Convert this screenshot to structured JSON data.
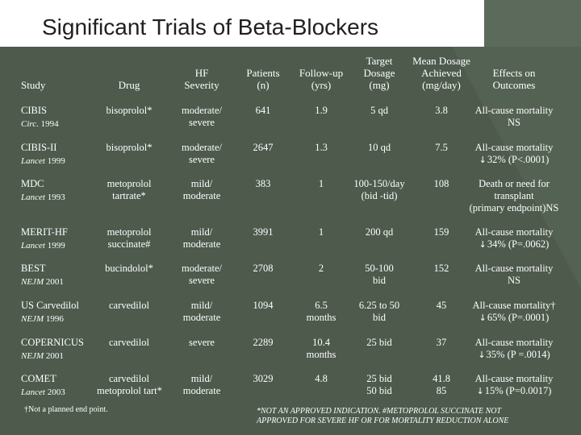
{
  "title": "Significant Trials of Beta-Blockers",
  "headers": {
    "study": "Study",
    "drug": "Drug",
    "hf": [
      "HF",
      "Severity"
    ],
    "patients": [
      "Patients",
      "(n)"
    ],
    "followup": [
      "Follow-up",
      "(yrs)"
    ],
    "target": [
      "Target",
      "Dosage",
      "(mg)"
    ],
    "mean": [
      "Mean Dosage",
      "Achieved",
      "(mg/day)"
    ],
    "effects": [
      "Effects on",
      "Outcomes"
    ]
  },
  "rows": [
    {
      "study": "CIBIS",
      "journal_it": "Circ.",
      "journal_year": " 1994",
      "drug": [
        "bisoprolol*"
      ],
      "hf": [
        "moderate/",
        "severe"
      ],
      "n": "641",
      "fu": [
        "1.9"
      ],
      "target": [
        "5 qd"
      ],
      "mean": [
        "3.8"
      ],
      "effects": [
        "All-cause mortality",
        "NS"
      ]
    },
    {
      "study": "CIBIS-II",
      "journal_it": "Lancet",
      "journal_year": " 1999",
      "drug": [
        "bisoprolol*"
      ],
      "hf": [
        "moderate/",
        "severe"
      ],
      "n": "2647",
      "fu": [
        "1.3"
      ],
      "target": [
        "10 qd"
      ],
      "mean": [
        "7.5"
      ],
      "effects": [
        "All-cause mortality",
        "32% (P<.0001)"
      ]
    },
    {
      "study": "MDC",
      "journal_it": "Lancet",
      "journal_year": " 1993",
      "drug": [
        "metoprolol",
        "tartrate*"
      ],
      "hf": [
        "mild/",
        "moderate"
      ],
      "n": "383",
      "fu": [
        "1"
      ],
      "target": [
        "100-150/day",
        "(bid -tid)"
      ],
      "mean": [
        "108"
      ],
      "effects": [
        "Death or need for",
        "transplant",
        "(primary endpoint)NS"
      ]
    },
    {
      "study": "MERIT-HF",
      "journal_it": "Lancet",
      "journal_year": " 1999",
      "drug": [
        "metoprolol",
        "succinate#"
      ],
      "hf": [
        "mild/",
        "moderate"
      ],
      "n": "3991",
      "fu": [
        "1"
      ],
      "target": [
        "200 qd"
      ],
      "mean": [
        "159"
      ],
      "effects": [
        "All-cause mortality",
        "34% (P=.0062)"
      ]
    },
    {
      "study": "BEST",
      "journal_it": "NEJM",
      "journal_year": " 2001",
      "drug": [
        "bucindolol*"
      ],
      "hf": [
        "moderate/",
        "severe"
      ],
      "n": "2708",
      "fu": [
        "2"
      ],
      "target": [
        "50-100",
        "bid"
      ],
      "mean": [
        "152"
      ],
      "effects": [
        "All-cause mortality",
        "NS"
      ]
    },
    {
      "study": "US Carvedilol",
      "journal_it": "NEJM",
      "journal_year": " 1996",
      "drug": [
        "carvedilol"
      ],
      "hf": [
        "mild/",
        "moderate"
      ],
      "n": "1094",
      "fu": [
        "6.5",
        "months"
      ],
      "target": [
        "6.25 to 50",
        "bid"
      ],
      "mean": [
        "45"
      ],
      "effects": [
        "All-cause mortality†",
        "65% (P=.0001)"
      ]
    },
    {
      "study": "COPERNICUS",
      "journal_it": "NEJM",
      "journal_year": " 2001",
      "drug": [
        "carvedilol"
      ],
      "hf": [
        "severe"
      ],
      "n": "2289",
      "fu": [
        "10.4",
        "months"
      ],
      "target": [
        "25 bid"
      ],
      "mean": [
        "37"
      ],
      "effects": [
        "All-cause mortality",
        "35% (P =.0014)"
      ]
    },
    {
      "study": "COMET",
      "journal_it": "Lancet",
      "journal_year": " 2003",
      "drug": [
        "carvedilol",
        "metoprolol tart*"
      ],
      "hf": [
        "mild/",
        "moderate"
      ],
      "n": "3029",
      "fu": [
        "4.8"
      ],
      "target": [
        "25 bid",
        "50 bid"
      ],
      "mean": [
        "41.8",
        "85"
      ],
      "effects": [
        "All-cause mortality",
        "15% (P=0.0017)"
      ]
    }
  ],
  "arrow_glyph": "↓",
  "footnote_left": "†Not a planned end point.",
  "footnote_right": [
    "*NOT AN APPROVED INDICATION. #METOPROLOL SUCCINATE NOT",
    "APPROVED FOR SEVERE HF OR FOR MORTALITY REDUCTION ALONE"
  ]
}
